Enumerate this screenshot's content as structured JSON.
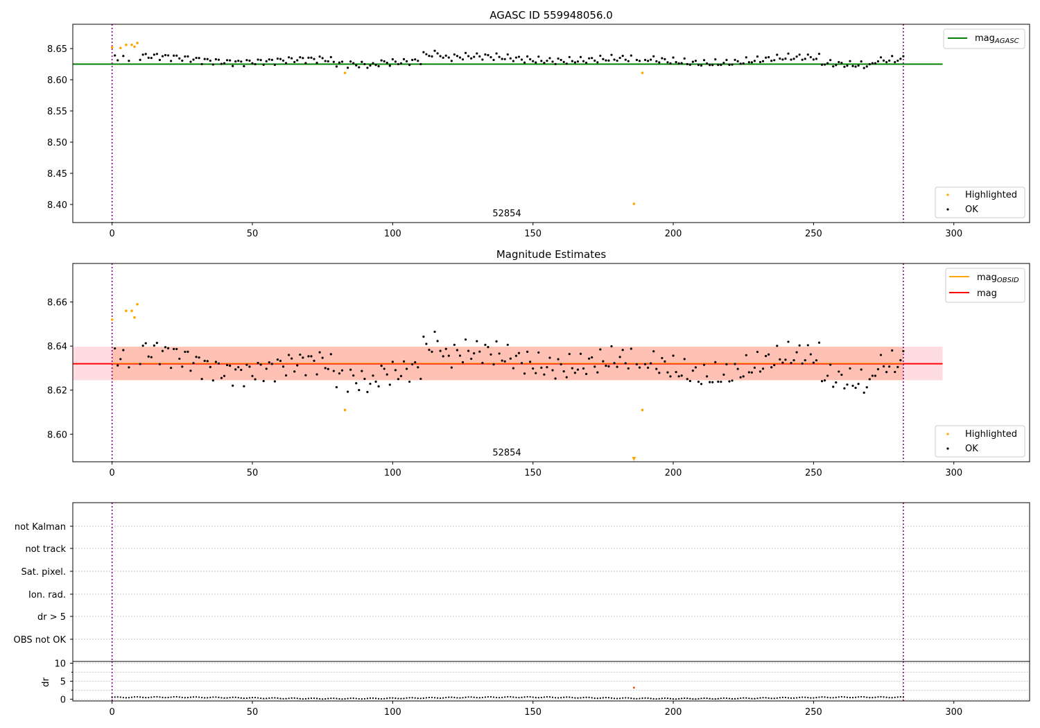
{
  "chart_data": [
    {
      "type": "scatter",
      "title": "AGASC ID 559948056.0",
      "xlabel": "",
      "ylabel": "",
      "xlim": [
        -14,
        327
      ],
      "ylim": [
        8.371,
        8.689
      ],
      "xticks": [
        0,
        50,
        100,
        150,
        200,
        250,
        300
      ],
      "yticks": [
        8.4,
        8.45,
        8.5,
        8.55,
        8.6,
        8.65
      ],
      "ytick_labels": [
        "8.40",
        "8.45",
        "8.50",
        "8.55",
        "8.60",
        "8.65"
      ],
      "obsid_boundaries": [
        0,
        282
      ],
      "obsid_label": "52854",
      "reference_line": {
        "name": "mag_AGASC",
        "value": 8.625,
        "x_range": [
          -14,
          296
        ],
        "color": "#008000"
      },
      "series": [
        {
          "name": "Highlighted",
          "color": "#ffa500",
          "x": [
            0,
            3,
            5,
            7,
            8,
            9,
            83,
            186,
            189
          ],
          "y": [
            8.652,
            8.651,
            8.656,
            8.656,
            8.653,
            8.659,
            8.611,
            8.401,
            8.611
          ]
        },
        {
          "name": "OK",
          "color": "#000000"
        }
      ],
      "legend": [
        "mag_AGASC",
        "Highlighted",
        "OK"
      ],
      "legend_placement": [
        "top-right",
        "bottom-right"
      ]
    },
    {
      "type": "scatter",
      "title": "Magnitude Estimates",
      "xlabel": "",
      "ylabel": "",
      "xlim": [
        -14,
        327
      ],
      "ylim": [
        8.5875,
        8.6775
      ],
      "xticks": [
        0,
        50,
        100,
        150,
        200,
        250,
        300
      ],
      "yticks": [
        8.6,
        8.62,
        8.64,
        8.66
      ],
      "ytick_labels": [
        "8.60",
        "8.62",
        "8.64",
        "8.66"
      ],
      "obsid_boundaries": [
        0,
        282
      ],
      "obsid_label": "52854",
      "mag_line": {
        "name": "mag",
        "value": 8.632,
        "x_range": [
          -14,
          296
        ],
        "color": "#ff0000"
      },
      "mag_obsid_line": {
        "name": "mag_OBSID",
        "value": 8.632,
        "x_range": [
          0,
          282
        ],
        "color": "#ffa500"
      },
      "bands": [
        {
          "name": "mag_band",
          "range": [
            8.6245,
            8.6397
          ],
          "x_range": [
            -14,
            296
          ],
          "color": "#ffc0cb"
        },
        {
          "name": "mag_OBSID_band",
          "range": [
            8.6245,
            8.6397
          ],
          "x_range": [
            0,
            282
          ],
          "color": "#ffa07a"
        }
      ],
      "series": [
        {
          "name": "Highlighted",
          "color": "#ffa500",
          "x": [
            0,
            5,
            7,
            8,
            9,
            83,
            186,
            189
          ],
          "y": [
            8.652,
            8.656,
            8.656,
            8.653,
            8.659,
            8.611,
            8.588,
            8.611
          ]
        },
        {
          "name": "OK",
          "color": "#000000"
        }
      ],
      "legend": [
        "mag_OBSID",
        "mag",
        "Highlighted",
        "OK"
      ],
      "legend_placement": [
        "top-right",
        "bottom-right"
      ]
    },
    {
      "type": "scatter",
      "title": "",
      "xlim": [
        -14,
        327
      ],
      "xticks": [
        0,
        50,
        100,
        150,
        200,
        250,
        300
      ],
      "flag_rows": [
        "not Kalman",
        "not track",
        "Sat. pixel.",
        "Ion. rad.",
        "dr > 5",
        "OBS not OK"
      ],
      "obsid_boundaries": [
        0,
        282
      ]
    },
    {
      "type": "scatter",
      "title": "",
      "ylabel": "dr",
      "xlim": [
        -14,
        327
      ],
      "ylim": [
        -0.5,
        10.5
      ],
      "xticks": [
        0,
        50,
        100,
        150,
        200,
        250,
        300
      ],
      "yticks": [
        0,
        5,
        10
      ],
      "obsid_boundaries": [
        0,
        282
      ],
      "highlighted_point": {
        "x": 186,
        "y": 3.2,
        "color": "#ff4500"
      },
      "dr_typical_range": [
        0.1,
        0.7
      ]
    }
  ]
}
